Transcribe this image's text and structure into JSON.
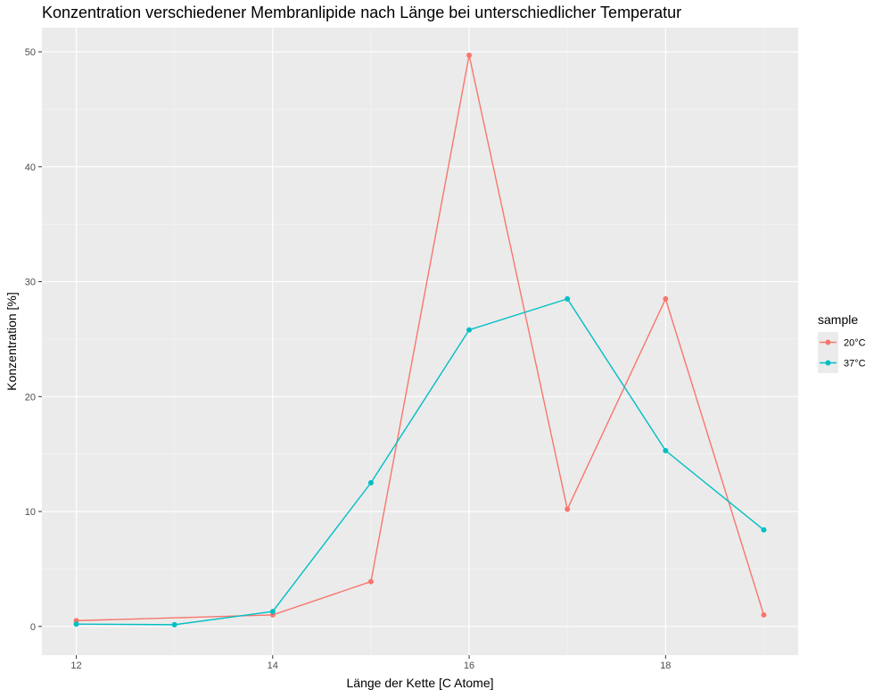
{
  "chart_data": {
    "type": "line",
    "title": "Konzentration verschiedener Membranlipide nach Länge bei unterschiedlicher Temperatur",
    "xlabel": "Länge der Kette [C Atome]",
    "ylabel": "Konzentration [%]",
    "xlim": [
      11.65,
      19.35
    ],
    "ylim": [
      -2.5,
      52.1
    ],
    "x_ticks": [
      12,
      14,
      16,
      18
    ],
    "x_minor_ticks": [
      13,
      15,
      17,
      19
    ],
    "y_ticks": [
      0,
      10,
      20,
      30,
      40,
      50
    ],
    "y_minor_ticks": [
      5,
      15,
      25,
      35,
      45
    ],
    "grid": true,
    "legend": {
      "title": "sample",
      "placement": "right"
    },
    "series": [
      {
        "name": "20°C",
        "color": "#F8766D",
        "points": [
          {
            "x": 12,
            "y": 0.5
          },
          {
            "x": 14,
            "y": 1.0
          },
          {
            "x": 15,
            "y": 3.9
          },
          {
            "x": 16,
            "y": 49.7
          },
          {
            "x": 17,
            "y": 10.2
          },
          {
            "x": 18,
            "y": 28.5
          },
          {
            "x": 19,
            "y": 1.0
          }
        ]
      },
      {
        "name": "37°C",
        "color": "#00BFC4",
        "points": [
          {
            "x": 12,
            "y": 0.2
          },
          {
            "x": 13,
            "y": 0.15
          },
          {
            "x": 14,
            "y": 1.3
          },
          {
            "x": 15,
            "y": 12.5
          },
          {
            "x": 16,
            "y": 25.8
          },
          {
            "x": 17,
            "y": 28.5
          },
          {
            "x": 18,
            "y": 15.3
          },
          {
            "x": 19,
            "y": 8.4
          }
        ]
      }
    ]
  },
  "colors": {
    "panel_background": "#EBEBEB",
    "grid_major": "#FFFFFF",
    "grid_minor": "#F5F5F5",
    "tick_text": "#4D4D4D",
    "axis_tick": "#333333",
    "legend_key_background": "#EBEBEB"
  }
}
